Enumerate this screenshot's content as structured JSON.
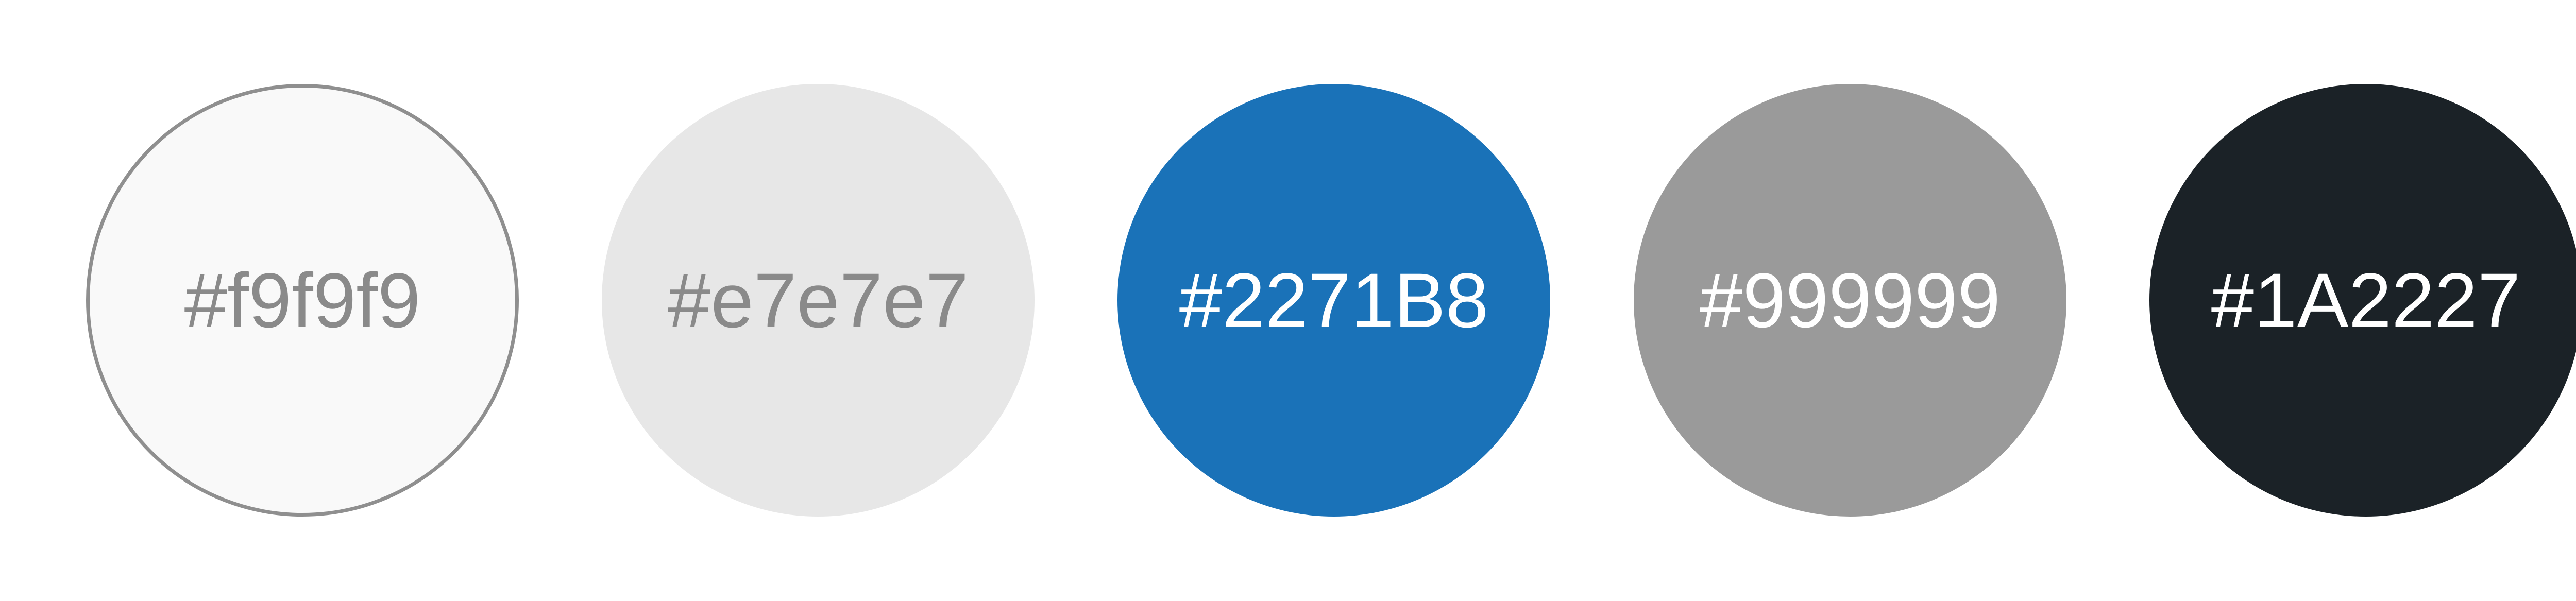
{
  "swatches": [
    {
      "label": "#f9f9f9",
      "fill": "#f9f9f9",
      "text_color": "#8a8a8a",
      "outline": "#8f8f8f"
    },
    {
      "label": "#e7e7e7",
      "fill": "#e7e7e7",
      "text_color": "#8a8a8a"
    },
    {
      "label": "#2271B8",
      "fill": "#1a72b8",
      "text_color": "#ffffff"
    },
    {
      "label": "#999999",
      "fill": "#9a9a9a",
      "text_color": "#ffffff"
    },
    {
      "label": "#1A2227",
      "fill": "#1b2227",
      "text_color": "#ffffff"
    }
  ]
}
